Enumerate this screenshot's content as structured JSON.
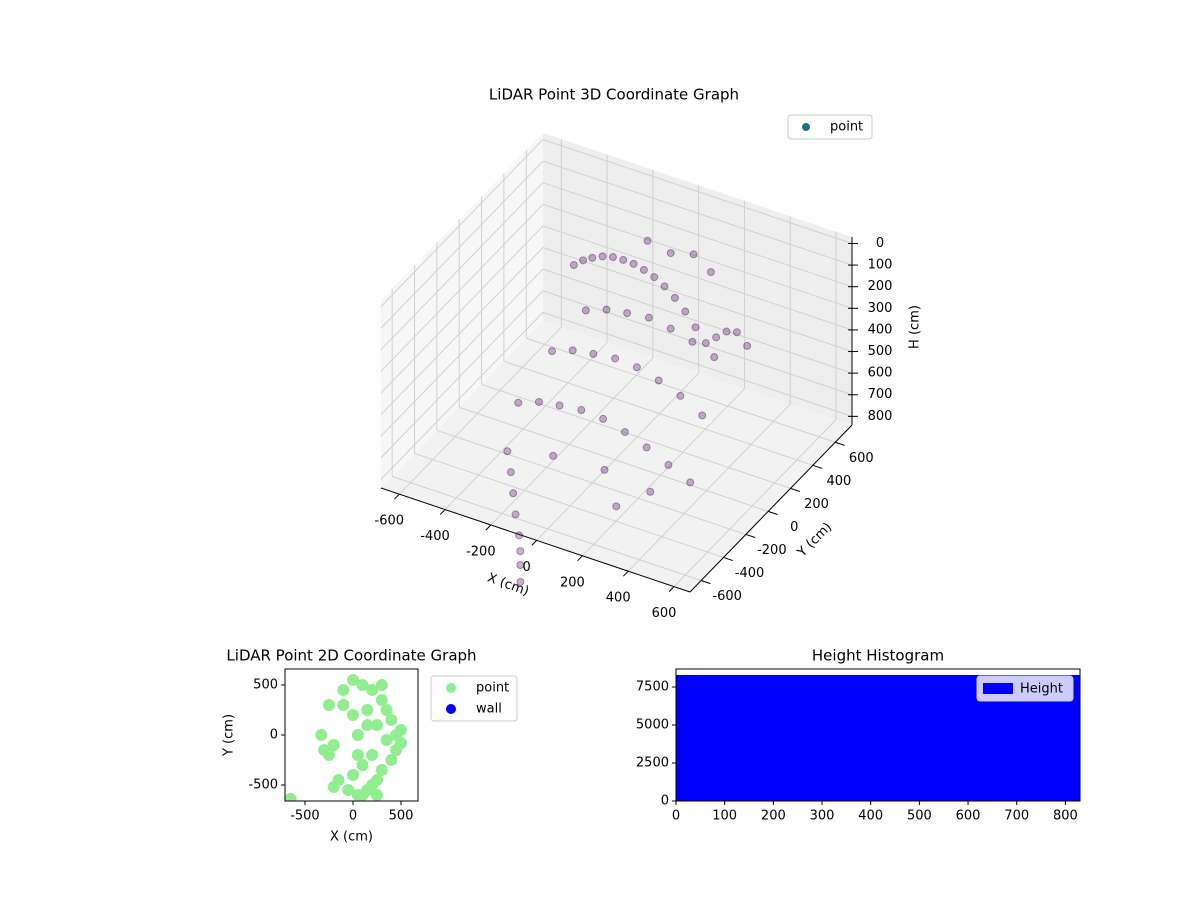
{
  "chart_data": [
    {
      "type": "scatter3d",
      "title": "LiDAR Point 3D Coordinate Graph",
      "xlabel": "X (cm)",
      "ylabel": "Y (cm)",
      "zlabel": "H (cm)",
      "xlim": [
        -680,
        670
      ],
      "ylim": [
        -700,
        750
      ],
      "zlim": [
        -30,
        840
      ],
      "z_inverted": true,
      "xticks": [
        -600,
        -400,
        -200,
        0,
        200,
        400,
        600
      ],
      "yticks": [
        -600,
        -400,
        -200,
        0,
        200,
        400,
        600
      ],
      "zticks": [
        0,
        100,
        200,
        300,
        400,
        500,
        600,
        700,
        800
      ],
      "grid": true,
      "legend": "upper right",
      "series": [
        {
          "name": "point",
          "color": "#440154",
          "legend_color": "#1f6e8c",
          "x": [
            -350,
            -300,
            -250,
            -200,
            -150,
            -100,
            -50,
            0,
            50,
            100,
            150,
            200,
            250,
            300,
            350,
            400,
            450,
            500,
            -250,
            -150,
            -50,
            50,
            150,
            250,
            350,
            450,
            -200,
            -100,
            0,
            100,
            200,
            300,
            400,
            -300,
            -200,
            -100,
            0,
            100,
            200,
            300,
            400,
            500,
            0,
            100,
            200,
            -50,
            150,
            350,
            -150,
            250,
            -250,
            -220,
            -200,
            -180,
            -150,
            -130,
            -120,
            -100
          ],
          "y": [
            350,
            330,
            310,
            300,
            290,
            280,
            270,
            260,
            250,
            240,
            230,
            220,
            210,
            200,
            190,
            180,
            170,
            160,
            -50,
            -70,
            -90,
            -100,
            -110,
            -120,
            -130,
            -140,
            150,
            130,
            110,
            100,
            90,
            80,
            70,
            -250,
            -270,
            -290,
            -300,
            -310,
            -320,
            -330,
            -340,
            -350,
            500,
            500,
            450,
            -450,
            -400,
            -400,
            600,
            -500,
            -450,
            -480,
            -500,
            -520,
            -550,
            -580,
            -600,
            -640
          ],
          "h": [
            250,
            200,
            160,
            130,
            110,
            100,
            95,
            100,
            110,
            130,
            160,
            200,
            250,
            300,
            250,
            200,
            180,
            220,
            400,
            350,
            320,
            300,
            300,
            320,
            350,
            400,
            300,
            250,
            220,
            200,
            210,
            230,
            260,
            550,
            500,
            470,
            450,
            450,
            470,
            500,
            540,
            580,
            150,
            120,
            140,
            600,
            620,
            650,
            200,
            700,
            650,
            720,
            800,
            880,
            950,
            1000,
            1050,
            1100
          ]
        }
      ]
    },
    {
      "type": "scatter",
      "title": "LiDAR Point 2D Coordinate Graph",
      "xlabel": "X (cm)",
      "ylabel": "Y (cm)",
      "xlim": [
        -708,
        677
      ],
      "ylim": [
        -660,
        660
      ],
      "xticks": [
        -500,
        0,
        500
      ],
      "yticks": [
        -500,
        0,
        500
      ],
      "legend": "outside right",
      "series": [
        {
          "name": "point",
          "color": "#90ee90",
          "x": [
            -650,
            -330,
            -300,
            -250,
            -250,
            -200,
            -150,
            -100,
            -50,
            0,
            0,
            50,
            50,
            100,
            100,
            150,
            150,
            200,
            200,
            250,
            250,
            300,
            300,
            350,
            350,
            400,
            400,
            450,
            450,
            500,
            500,
            0,
            100,
            200,
            -100,
            300,
            150,
            50,
            250,
            -200
          ],
          "y": [
            -640,
            0,
            -150,
            300,
            -200,
            -100,
            -450,
            450,
            -550,
            550,
            200,
            -600,
            0,
            500,
            -300,
            250,
            -550,
            450,
            -200,
            100,
            -450,
            350,
            -350,
            -50,
            250,
            150,
            -250,
            0,
            -150,
            50,
            -80,
            -400,
            -600,
            -500,
            300,
            500,
            100,
            -200,
            -600,
            -520
          ]
        },
        {
          "name": "wall",
          "color": "#0000ff",
          "x": [],
          "y": []
        }
      ]
    },
    {
      "type": "hist",
      "title": "Height Histogram",
      "name": "Height",
      "color": "#0000ff",
      "bins": [
        0,
        830
      ],
      "counts": [
        8290
      ],
      "xlim": [
        0,
        830
      ],
      "ylim": [
        0,
        8684
      ],
      "xticks": [
        0,
        100,
        200,
        300,
        400,
        500,
        600,
        700,
        800
      ],
      "yticks": [
        0,
        2500,
        5000,
        7500
      ],
      "legend": "upper right"
    }
  ]
}
